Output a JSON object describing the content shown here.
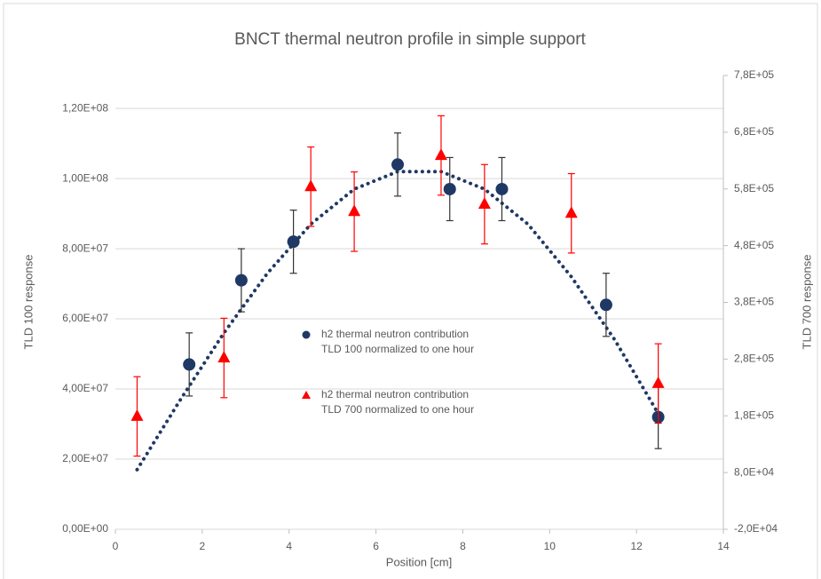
{
  "chart_data": {
    "type": "scatter",
    "title": "BNCT thermal neutron profile in simple support",
    "x_label": "Position [cm]",
    "y_label": "TLD 100 response",
    "y2_label": "TLD 700 response",
    "xlim": [
      0,
      14
    ],
    "xticks": [
      0,
      2,
      4,
      6,
      8,
      10,
      12,
      14
    ],
    "ylim": [
      0,
      129400000
    ],
    "yticks": [
      {
        "value": 0,
        "label": "0,00E+00"
      },
      {
        "value": 20000000,
        "label": "2,00E+07"
      },
      {
        "value": 40000000,
        "label": "4,00E+07"
      },
      {
        "value": 60000000,
        "label": "6,00E+07"
      },
      {
        "value": 80000000,
        "label": "8,00E+07"
      },
      {
        "value": 100000000,
        "label": "1,00E+08"
      },
      {
        "value": 120000000,
        "label": "1,20E+08"
      }
    ],
    "y2lim": [
      -20000,
      780000
    ],
    "y2ticks": [
      {
        "value": -20000,
        "label": "-2,0E+04"
      },
      {
        "value": 80000,
        "label": "8,0E+04"
      },
      {
        "value": 180000,
        "label": "1,8E+05"
      },
      {
        "value": 280000,
        "label": "2,8E+05"
      },
      {
        "value": 380000,
        "label": "3,8E+05"
      },
      {
        "value": 480000,
        "label": "4,8E+05"
      },
      {
        "value": 580000,
        "label": "5,8E+05"
      },
      {
        "value": 680000,
        "label": "6,8E+05"
      },
      {
        "value": 780000,
        "label": "7,8E+05"
      }
    ],
    "grid": true,
    "series": [
      {
        "name": "h2 thermal neutron contribution\nTLD 100 normalized to one hour",
        "color": "#1f3864",
        "marker": "circle",
        "axis": "y",
        "x": [
          1.7,
          2.9,
          4.1,
          6.5,
          7.7,
          8.9,
          11.3,
          12.5
        ],
        "values": [
          47000000,
          71000000,
          82000000,
          104000000,
          97000000,
          97000000,
          64000000,
          32000000
        ],
        "errors": [
          9000000,
          9000000,
          9000000,
          9000000,
          9000000,
          9000000,
          9000000,
          9000000
        ]
      },
      {
        "name": "h2 thermal neutron contribution\nTLD 700 normalized to one hour",
        "color": "#ff0000",
        "marker": "triangle",
        "axis": "y2",
        "x": [
          0.5,
          2.5,
          4.5,
          5.5,
          7.5,
          8.5,
          10.5,
          12.5
        ],
        "values": [
          179000,
          282000,
          584000,
          540000,
          639000,
          553000,
          537000,
          237000
        ],
        "errors": [
          70000,
          70000,
          70000,
          70000,
          70000,
          70000,
          70000,
          70000
        ]
      }
    ],
    "trendline": {
      "color": "#1f3864",
      "x": [
        0.5,
        1.5,
        2.5,
        3.5,
        4.5,
        5.5,
        6.5,
        7.5,
        8.5,
        9.5,
        10.5,
        11.5,
        12.5
      ],
      "values": [
        17000000,
        37000000,
        56000000,
        73000000,
        87000000,
        97000000,
        102000000,
        102000000,
        97000000,
        87000000,
        72000000,
        54000000,
        33000000
      ]
    }
  }
}
